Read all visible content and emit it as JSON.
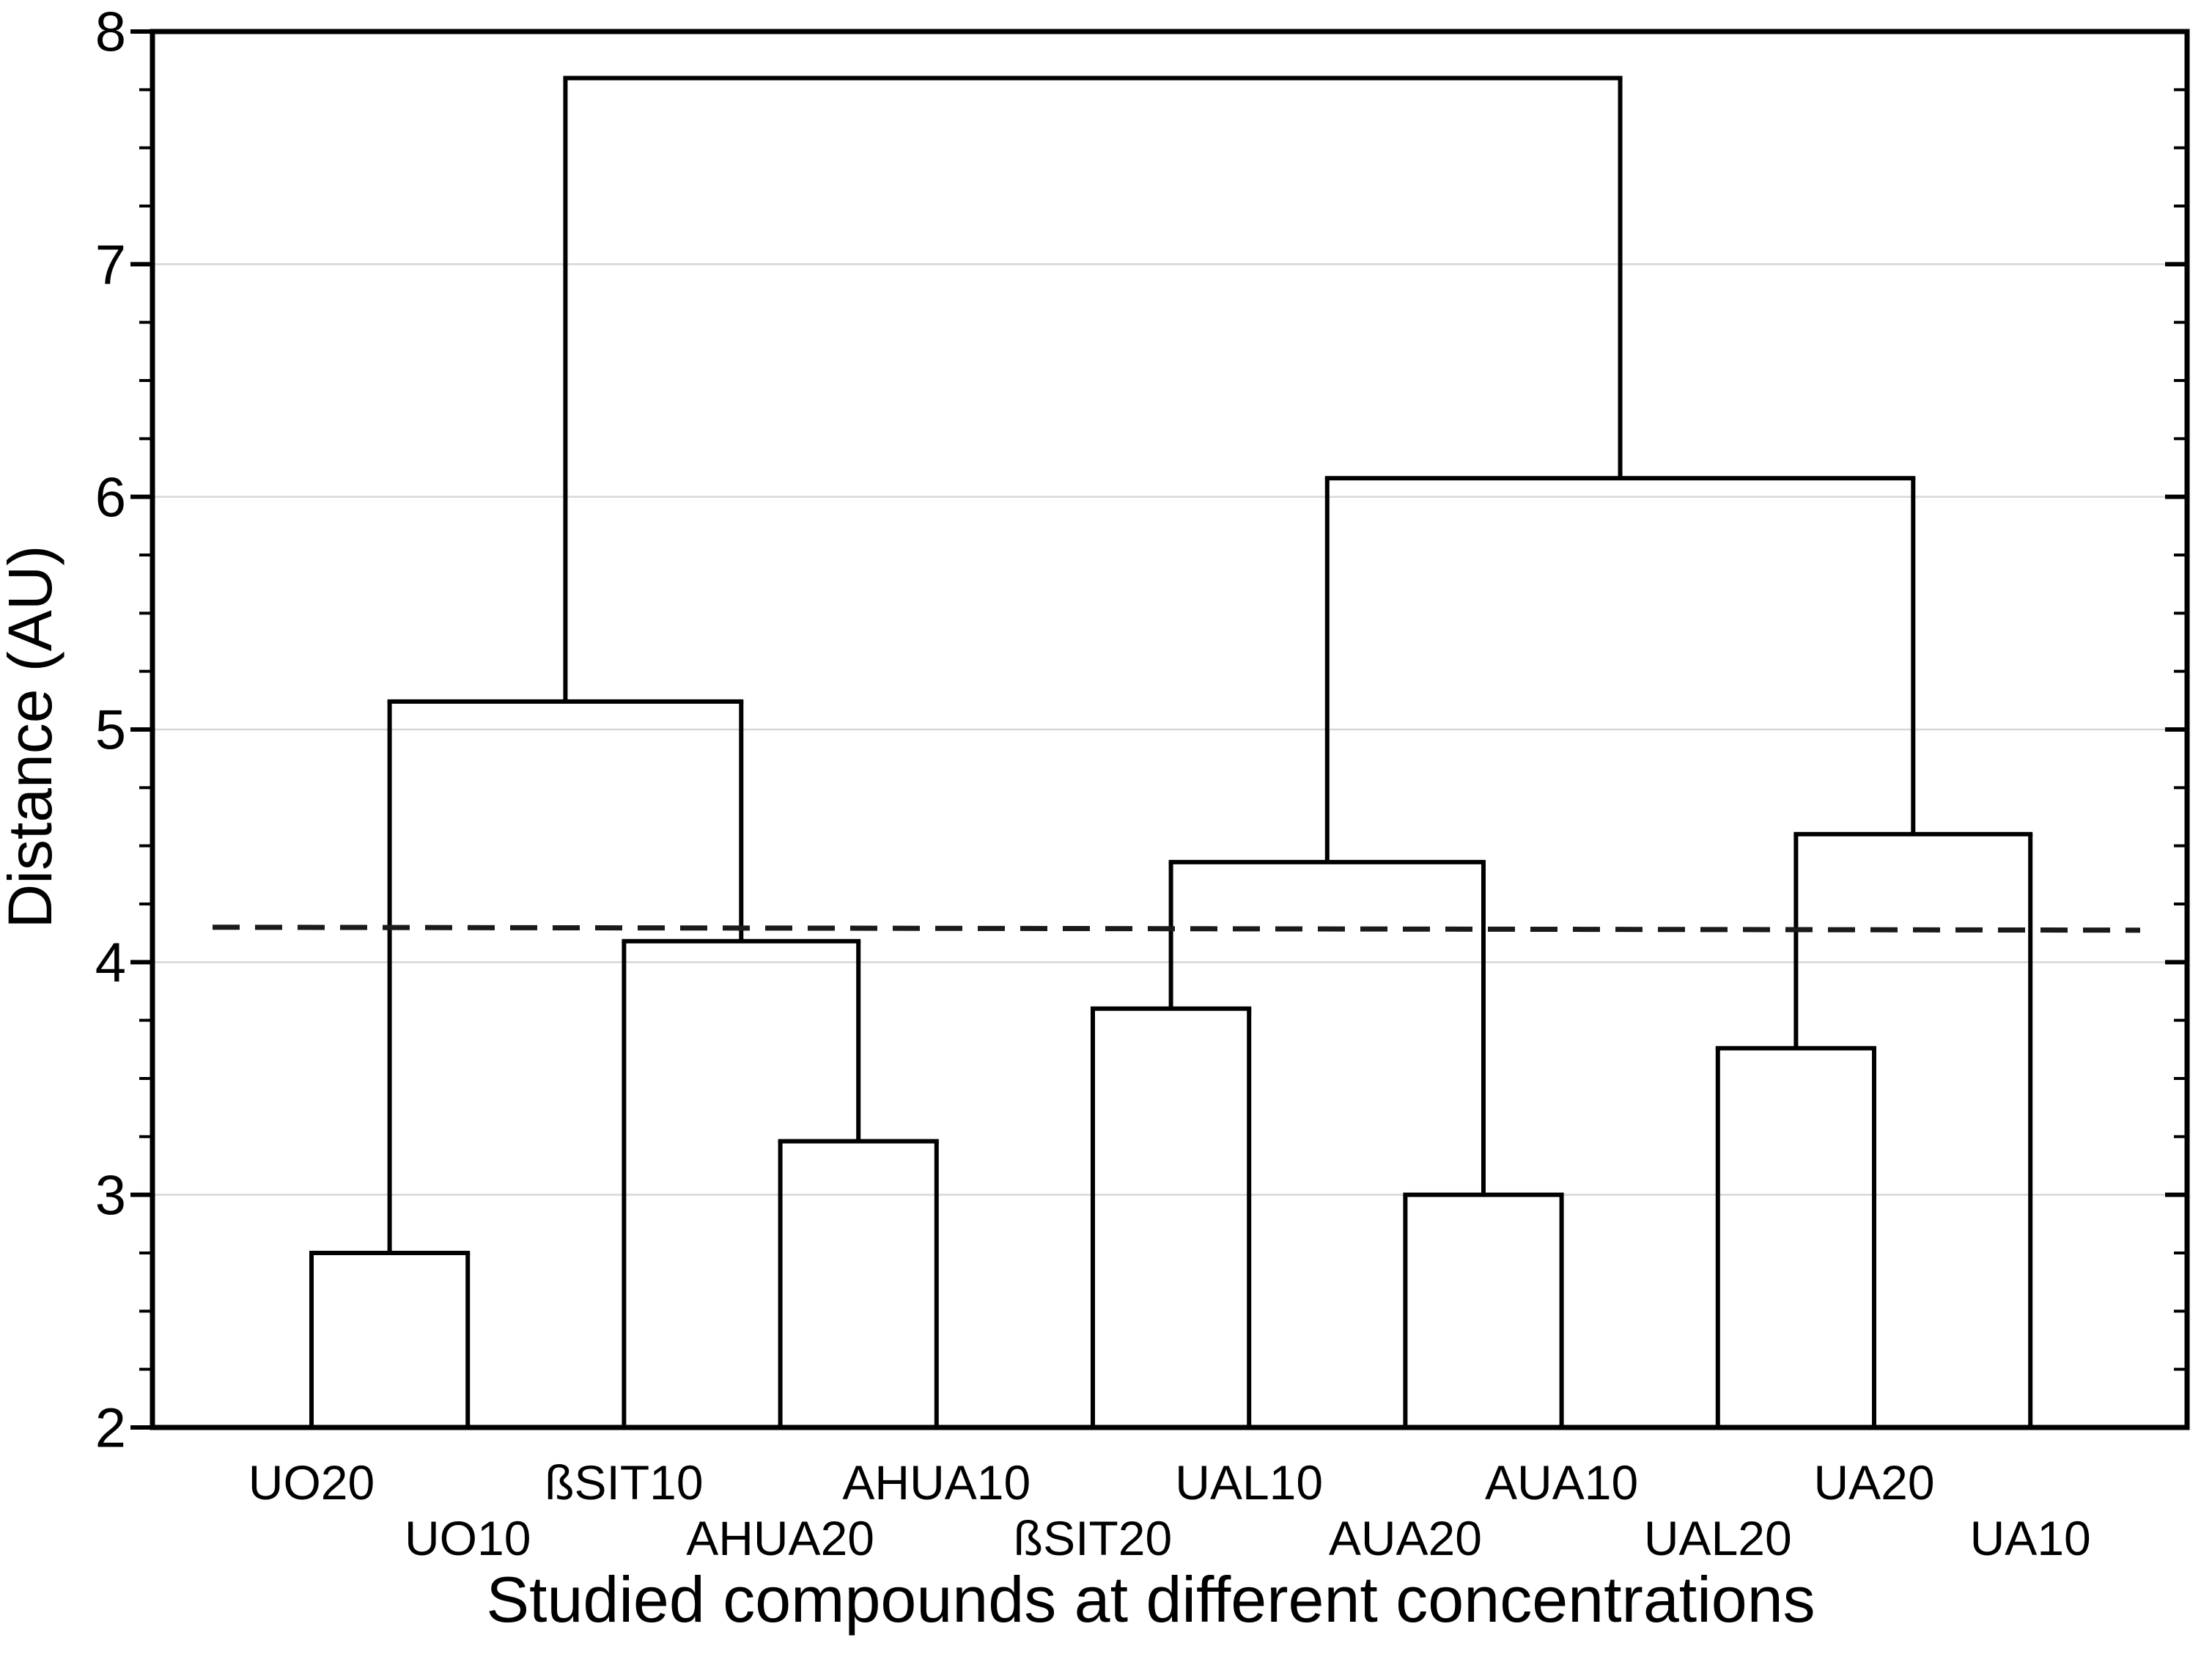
{
  "chart_data": {
    "type": "dendrogram",
    "xlabel": "Studied compounds at different concentrations",
    "ylabel": "Distance (AU)",
    "y_axis": {
      "min": 2,
      "max": 8,
      "major_tick_step": 1,
      "minor_tick_step": 0.25,
      "tick_labels": [
        2,
        3,
        4,
        5,
        6,
        7,
        8
      ],
      "gridlines": [
        3,
        4,
        5,
        6,
        7
      ],
      "grid_on": true
    },
    "leaves": [
      "UO20",
      "UO10",
      "ßSIT10",
      "AHUA20",
      "AHUA10",
      "ßSIT20",
      "UAL10",
      "AUA20",
      "AUA10",
      "UAL20",
      "UA20",
      "UA10"
    ],
    "leaf_label_rows": [
      1,
      2,
      1,
      2,
      1,
      2,
      1,
      2,
      1,
      2,
      1,
      2
    ],
    "merges": [
      {
        "id": "m1",
        "children": [
          "UO20",
          "UO10"
        ],
        "height": 2.75
      },
      {
        "id": "m2",
        "children": [
          "AHUA20",
          "AHUA10"
        ],
        "height": 3.23
      },
      {
        "id": "m3",
        "children": [
          "ßSIT10",
          "m2"
        ],
        "height": 4.09
      },
      {
        "id": "m4",
        "children": [
          "m1",
          "m3"
        ],
        "height": 5.12
      },
      {
        "id": "m5",
        "children": [
          "ßSIT20",
          "UAL10"
        ],
        "height": 3.8
      },
      {
        "id": "m6",
        "children": [
          "AUA20",
          "AUA10"
        ],
        "height": 3.0
      },
      {
        "id": "m7",
        "children": [
          "m5",
          "m6"
        ],
        "height": 4.43
      },
      {
        "id": "m8",
        "children": [
          "UAL20",
          "UA20"
        ],
        "height": 3.63
      },
      {
        "id": "m9",
        "children": [
          "m8",
          "UA10"
        ],
        "height": 4.55
      },
      {
        "id": "m10",
        "children": [
          "m7",
          "m9"
        ],
        "height": 6.08
      },
      {
        "id": "root",
        "children": [
          "m4",
          "m10"
        ],
        "height": 7.8
      }
    ],
    "cut_line": {
      "value": 4.15,
      "style": "dashed"
    },
    "colors": {
      "line": "#000000",
      "frame": "#000000",
      "gridline": "#d7d7d7",
      "cut_line": "#1a1a1a",
      "background": "#ffffff",
      "text": "#000000"
    }
  }
}
